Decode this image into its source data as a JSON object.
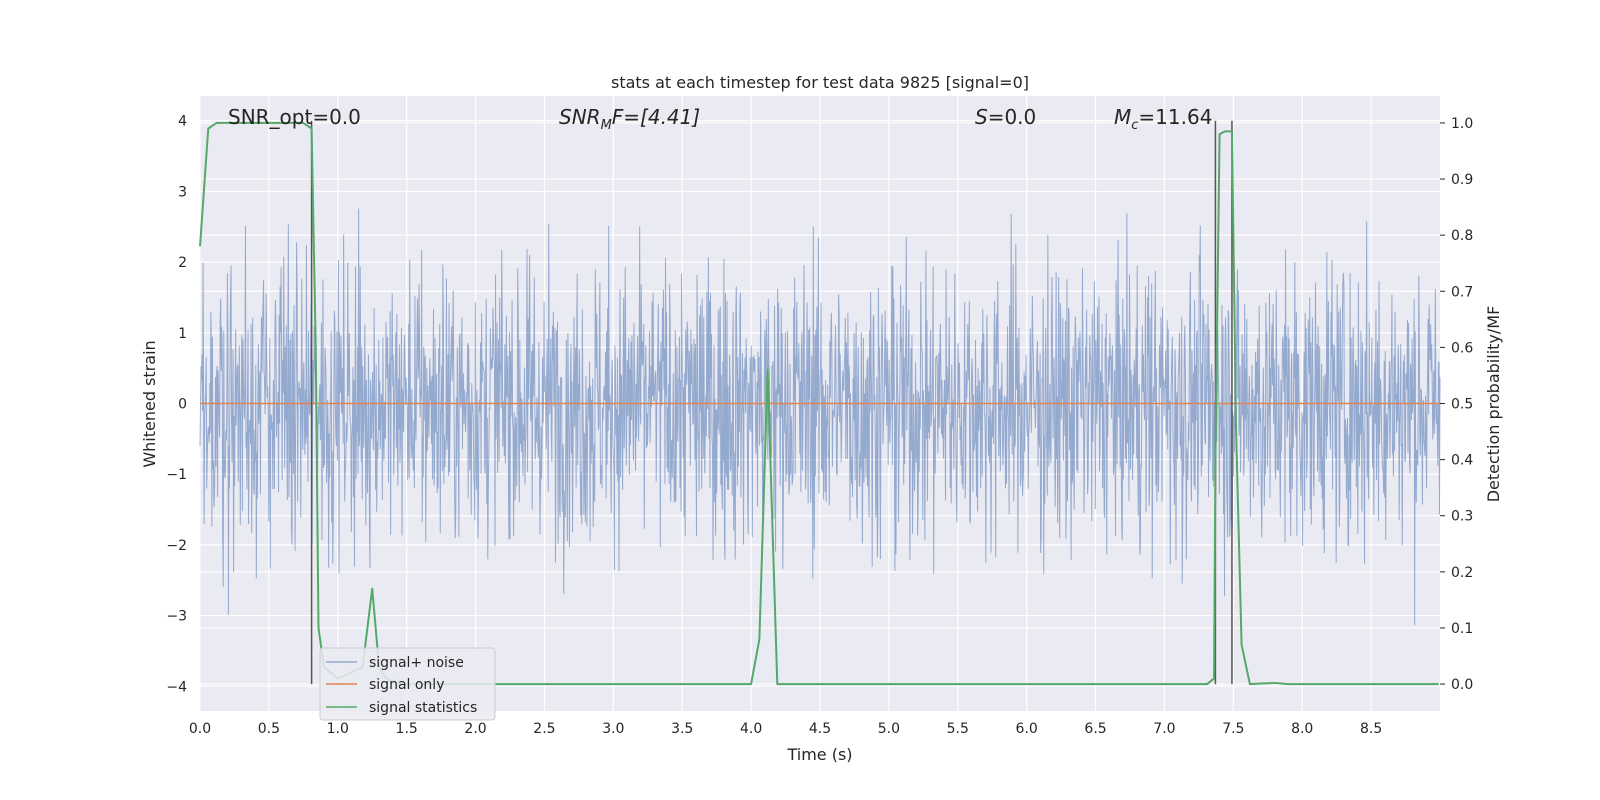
{
  "chart_data": {
    "type": "line",
    "title": "stats at each timestep for test data 9825 [signal=0]",
    "xlabel": "Time (s)",
    "ylabel": "Whitened strain",
    "ylabel_right": "Detection probability/MF",
    "xlim": [
      0.0,
      9.0
    ],
    "ylim": [
      -4.35,
      4.35
    ],
    "ylim_right": [
      -0.048,
      1.048
    ],
    "grid": true,
    "x_ticks": [
      "0.0",
      "0.5",
      "1.0",
      "1.5",
      "2.0",
      "2.5",
      "3.0",
      "3.5",
      "4.0",
      "4.5",
      "5.0",
      "5.5",
      "6.0",
      "6.5",
      "7.0",
      "7.5",
      "8.0",
      "8.5"
    ],
    "y_ticks": [
      "−4",
      "−3",
      "−2",
      "−1",
      "0",
      "1",
      "2",
      "3",
      "4"
    ],
    "y_ticks_right": [
      "0.0",
      "0.1",
      "0.2",
      "0.3",
      "0.4",
      "0.5",
      "0.6",
      "0.7",
      "0.8",
      "0.9",
      "1.0"
    ],
    "annotations": {
      "snr_opt": "SNR_opt=0.0",
      "snr_mf_main": "SNR",
      "snr_mf_sub": "M",
      "snr_mf_rest": "F=[4.41]",
      "s_italic": "S",
      "s_rest": "=0.0",
      "mc_italic": "M",
      "mc_sub": "c",
      "mc_rest": "=11.64"
    },
    "legend": {
      "placement": "lower-left",
      "entries": [
        "signal+ noise",
        "signal only",
        "signal statistics"
      ]
    },
    "vertical_lines_x": [
      0.81,
      7.37,
      7.49
    ],
    "series": [
      {
        "name": "signal+ noise",
        "axis": "left",
        "color": "#4c72b0",
        "style": "noise",
        "noise_sigma": 1.0,
        "envelope": {
          "upper": 4.0,
          "lower": -3.65
        }
      },
      {
        "name": "signal only",
        "axis": "left",
        "color": "#dd8452",
        "x": [
          0.0,
          9.0
        ],
        "values": [
          0.0,
          0.0
        ]
      },
      {
        "name": "signal statistics",
        "axis": "right",
        "color": "#55a868",
        "x": [
          0.0,
          0.06,
          0.12,
          0.25,
          0.5,
          0.75,
          0.81,
          0.84,
          0.86,
          0.9,
          1.0,
          1.18,
          1.25,
          1.3,
          1.35,
          1.45,
          1.6,
          2.0,
          3.0,
          4.0,
          4.06,
          4.12,
          4.19,
          4.25,
          5.0,
          6.0,
          7.0,
          7.31,
          7.36,
          7.37,
          7.4,
          7.44,
          7.49,
          7.52,
          7.56,
          7.62,
          7.7,
          7.8,
          7.9,
          8.5,
          8.99
        ],
        "values": [
          0.78,
          0.99,
          1.0,
          1.0,
          1.0,
          1.0,
          0.99,
          0.6,
          0.1,
          0.03,
          0.01,
          0.03,
          0.17,
          0.03,
          0.01,
          0.0,
          0.0,
          0.0,
          0.0,
          0.0,
          0.08,
          0.56,
          0.0,
          0.0,
          0.0,
          0.0,
          0.0,
          0.0,
          0.01,
          0.4,
          0.98,
          0.985,
          0.985,
          0.45,
          0.07,
          0.0,
          0.001,
          0.002,
          0.0,
          0.0,
          0.0
        ]
      }
    ]
  }
}
